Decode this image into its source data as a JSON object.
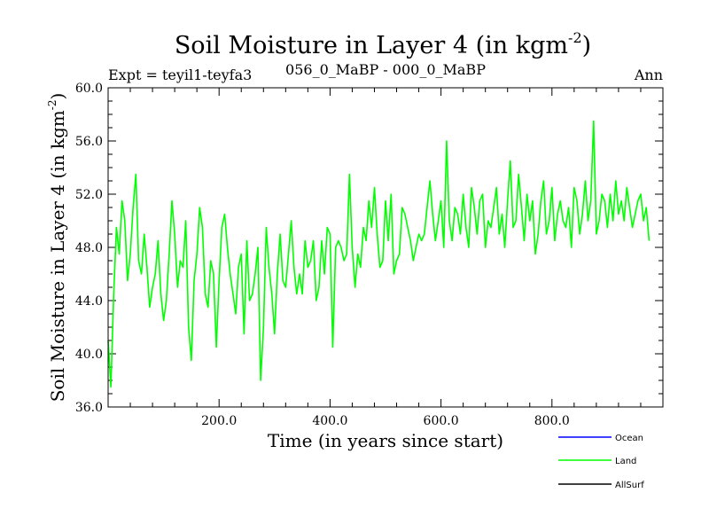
{
  "chart_data": {
    "type": "line",
    "title": "Soil Moisture in Layer 4 (in kgm",
    "title_sup": "-2",
    "title_suffix": ")",
    "subtitle_left": "Expt = teyil1-teyfa3",
    "subtitle_center": "056_0_MaBP - 000_0_MaBP",
    "subtitle_right": "Ann",
    "xlabel": "Time (in years since start)",
    "ylabel": "Soil Moisture in Layer 4 (in kgm",
    "ylabel_sup": "-2",
    "ylabel_suffix": ")",
    "xlim": [
      0,
      1000
    ],
    "ylim": [
      36.0,
      60.0
    ],
    "x_ticks": [
      200,
      400,
      600,
      800
    ],
    "x_tick_labels": [
      "200.0",
      "400.0",
      "600.0",
      "800.0"
    ],
    "y_ticks": [
      36,
      40,
      44,
      48,
      52,
      56,
      60
    ],
    "y_tick_labels": [
      "36.0",
      "40.0",
      "44.0",
      "48.0",
      "52.0",
      "56.0",
      "60.0"
    ],
    "legend": [
      {
        "name": "Ocean",
        "color": "#0000ff"
      },
      {
        "name": "Land",
        "color": "#00ff00"
      },
      {
        "name": "AllSurf",
        "color": "#000000"
      }
    ],
    "series": [
      {
        "name": "Land",
        "color": "#00ff00",
        "x_start": 0,
        "x_step": 5,
        "values": [
          41.0,
          37.5,
          44.5,
          49.5,
          47.5,
          51.5,
          50.0,
          45.5,
          47.5,
          51.0,
          53.5,
          47.0,
          46.0,
          49.0,
          46.5,
          43.5,
          45.0,
          46.0,
          48.5,
          44.5,
          42.5,
          44.0,
          47.5,
          51.5,
          49.0,
          45.0,
          47.0,
          46.5,
          50.0,
          42.0,
          39.5,
          45.5,
          47.5,
          51.0,
          49.5,
          44.5,
          43.5,
          47.0,
          46.0,
          40.5,
          45.5,
          49.5,
          50.5,
          48.0,
          46.0,
          44.5,
          43.0,
          46.5,
          47.5,
          41.5,
          48.5,
          44.0,
          44.5,
          46.0,
          48.0,
          38.0,
          42.0,
          49.5,
          46.5,
          44.5,
          41.5,
          46.0,
          49.0,
          45.5,
          45.0,
          47.5,
          50.0,
          46.5,
          44.5,
          46.0,
          44.5,
          48.5,
          46.5,
          47.0,
          48.5,
          44.0,
          45.0,
          48.5,
          46.0,
          49.5,
          49.0,
          40.5,
          48.0,
          48.5,
          48.0,
          47.0,
          47.5,
          53.5,
          48.0,
          45.0,
          47.5,
          46.5,
          49.5,
          48.5,
          51.5,
          49.5,
          52.5,
          49.0,
          46.5,
          47.0,
          51.5,
          48.5,
          52.0,
          46.0,
          47.0,
          47.5,
          51.0,
          50.5,
          49.5,
          48.5,
          47.0,
          48.0,
          49.0,
          48.5,
          49.0,
          51.0,
          53.0,
          50.5,
          48.5,
          50.0,
          51.5,
          48.0,
          56.0,
          50.0,
          48.5,
          51.0,
          50.5,
          49.0,
          52.0,
          49.5,
          48.0,
          52.5,
          51.0,
          49.0,
          51.5,
          52.0,
          48.0,
          50.0,
          49.5,
          51.0,
          52.5,
          49.0,
          50.5,
          48.0,
          51.5,
          54.5,
          49.5,
          50.0,
          53.5,
          51.0,
          48.5,
          52.0,
          50.0,
          51.5,
          47.5,
          49.0,
          51.5,
          53.0,
          49.0,
          50.0,
          52.5,
          48.5,
          50.5,
          51.5,
          50.0,
          49.5,
          51.0,
          48.0,
          52.5,
          51.5,
          49.0,
          50.5,
          53.0,
          50.0,
          51.5,
          57.5,
          49.0,
          50.0,
          52.0,
          51.5,
          49.5,
          52.0,
          50.0,
          53.0,
          50.5,
          51.5,
          50.0,
          52.5,
          51.0,
          49.5,
          50.5,
          51.5,
          52.0,
          50.0,
          51.0,
          48.5
        ]
      }
    ]
  }
}
